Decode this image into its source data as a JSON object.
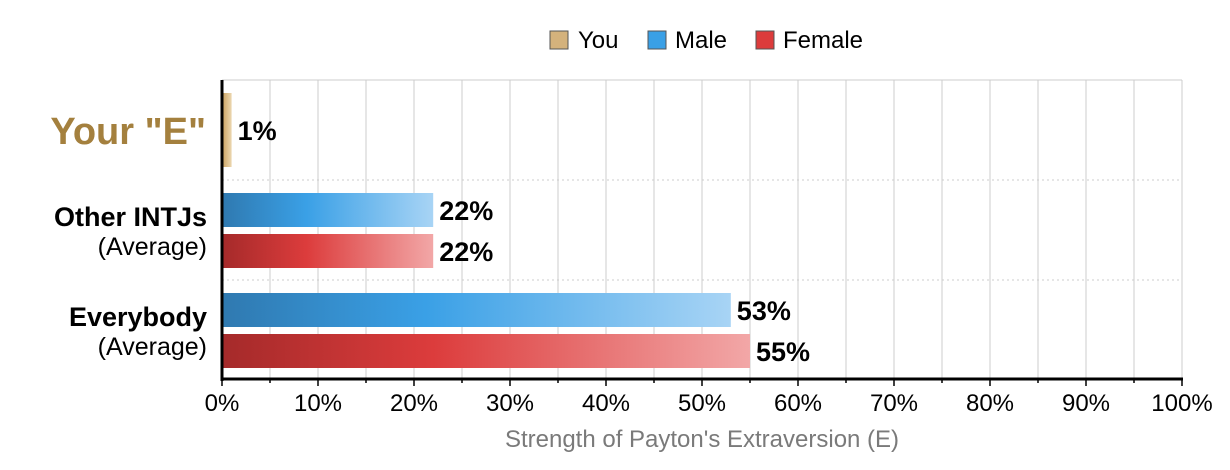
{
  "colors": {
    "you": "#d4b27c",
    "male": "#3aa0e6",
    "female": "#dc3c3c",
    "you_label": "#a4803e",
    "grid": "#cccccc",
    "axis_title": "#7a7a7a"
  },
  "chart_data": {
    "type": "bar",
    "orientation": "horizontal",
    "xlabel": "Strength of Payton's Extraversion (E)",
    "xlim": [
      0,
      100
    ],
    "x_ticks": [
      "0%",
      "10%",
      "20%",
      "30%",
      "40%",
      "50%",
      "60%",
      "70%",
      "80%",
      "90%",
      "100%"
    ],
    "grid": true,
    "legend_position": "top-center",
    "legend": [
      {
        "key": "you",
        "label": "You"
      },
      {
        "key": "male",
        "label": "Male"
      },
      {
        "key": "female",
        "label": "Female"
      }
    ],
    "groups": [
      {
        "label": "Your \"E\"",
        "sublabel": "",
        "bars": [
          {
            "series": "you",
            "value": 1,
            "label": "1%"
          }
        ]
      },
      {
        "label": "Other INTJs",
        "sublabel": "(Average)",
        "bars": [
          {
            "series": "male",
            "value": 22,
            "label": "22%"
          },
          {
            "series": "female",
            "value": 22,
            "label": "22%"
          }
        ]
      },
      {
        "label": "Everybody",
        "sublabel": "(Average)",
        "bars": [
          {
            "series": "male",
            "value": 53,
            "label": "53%"
          },
          {
            "series": "female",
            "value": 55,
            "label": "55%"
          }
        ]
      }
    ]
  }
}
